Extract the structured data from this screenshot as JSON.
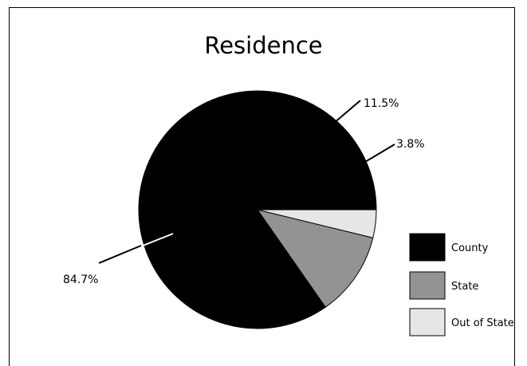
{
  "chart_data": {
    "type": "pie",
    "title": "Residence",
    "slices": [
      {
        "name": "County",
        "value": 84.7,
        "label": "84.7%",
        "color": "#000000"
      },
      {
        "name": "State",
        "value": 11.5,
        "label": "11.5%",
        "color": "#939393"
      },
      {
        "name": "Out of State",
        "value": 3.8,
        "label": "3.8%",
        "color": "#e6e6e6"
      }
    ],
    "legend_position": "right"
  }
}
